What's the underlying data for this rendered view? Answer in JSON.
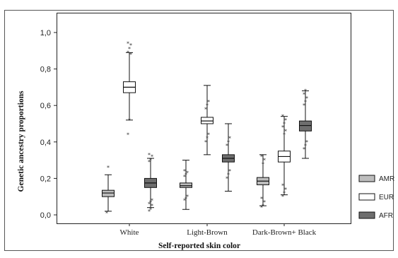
{
  "chart_data": {
    "type": "boxplot",
    "title": "",
    "xlabel": "Self-reported skin color",
    "ylabel": "Genetic ancestry proportions",
    "ylim": [
      0.0,
      1.0
    ],
    "yticks": [
      "0,0",
      "0,2",
      "0,4",
      "0,6",
      "0,8",
      "1,0"
    ],
    "categories": [
      "White",
      "Light-Brown",
      "Dark-Brown+ Black"
    ],
    "legend_position": "right",
    "series": [
      {
        "name": "AMR",
        "color": "#bdbdbd",
        "boxes": [
          {
            "q1": 0.1,
            "median": 0.12,
            "q3": 0.135,
            "whisker_low": 0.02,
            "whisker_high": 0.22,
            "outliers": [
              0.01,
              0.26
            ]
          },
          {
            "q1": 0.15,
            "median": 0.16,
            "q3": 0.175,
            "whisker_low": 0.03,
            "whisker_high": 0.3,
            "outliers": [
              0.08,
              0.09,
              0.1,
              0.21,
              0.22,
              0.23,
              0.24
            ]
          },
          {
            "q1": 0.165,
            "median": 0.185,
            "q3": 0.205,
            "whisker_low": 0.05,
            "whisker_high": 0.33,
            "outliers": [
              0.04,
              0.05,
              0.07,
              0.09,
              0.28,
              0.3,
              0.32
            ]
          }
        ]
      },
      {
        "name": "EUR",
        "color": "#ffffff",
        "boxes": [
          {
            "q1": 0.67,
            "median": 0.7,
            "q3": 0.73,
            "whisker_low": 0.52,
            "whisker_high": 0.89,
            "outliers": [
              0.44,
              0.52,
              0.88,
              0.89,
              0.91,
              0.93,
              0.94
            ]
          },
          {
            "q1": 0.5,
            "median": 0.515,
            "q3": 0.535,
            "whisker_low": 0.33,
            "whisker_high": 0.71,
            "outliers": [
              0.4,
              0.42,
              0.44,
              0.58,
              0.6,
              0.62
            ]
          },
          {
            "q1": 0.29,
            "median": 0.32,
            "q3": 0.35,
            "whisker_low": 0.11,
            "whisker_high": 0.54,
            "outliers": [
              0.1,
              0.12,
              0.14,
              0.16,
              0.44,
              0.46,
              0.48,
              0.5,
              0.52,
              0.54
            ]
          }
        ]
      },
      {
        "name": "AFR",
        "color": "#6e6e6e",
        "boxes": [
          {
            "q1": 0.15,
            "median": 0.175,
            "q3": 0.2,
            "whisker_low": 0.04,
            "whisker_high": 0.31,
            "outliers": [
              0.02,
              0.03,
              0.05,
              0.06,
              0.07,
              0.08,
              0.29,
              0.3,
              0.32,
              0.33
            ]
          },
          {
            "q1": 0.29,
            "median": 0.31,
            "q3": 0.33,
            "whisker_low": 0.13,
            "whisker_high": 0.5,
            "outliers": [
              0.2,
              0.22,
              0.24,
              0.38,
              0.4,
              0.42
            ]
          },
          {
            "q1": 0.46,
            "median": 0.49,
            "q3": 0.515,
            "whisker_low": 0.31,
            "whisker_high": 0.68,
            "outliers": [
              0.36,
              0.38,
              0.4,
              0.6,
              0.62,
              0.64,
              0.66,
              0.68
            ]
          }
        ]
      }
    ]
  }
}
